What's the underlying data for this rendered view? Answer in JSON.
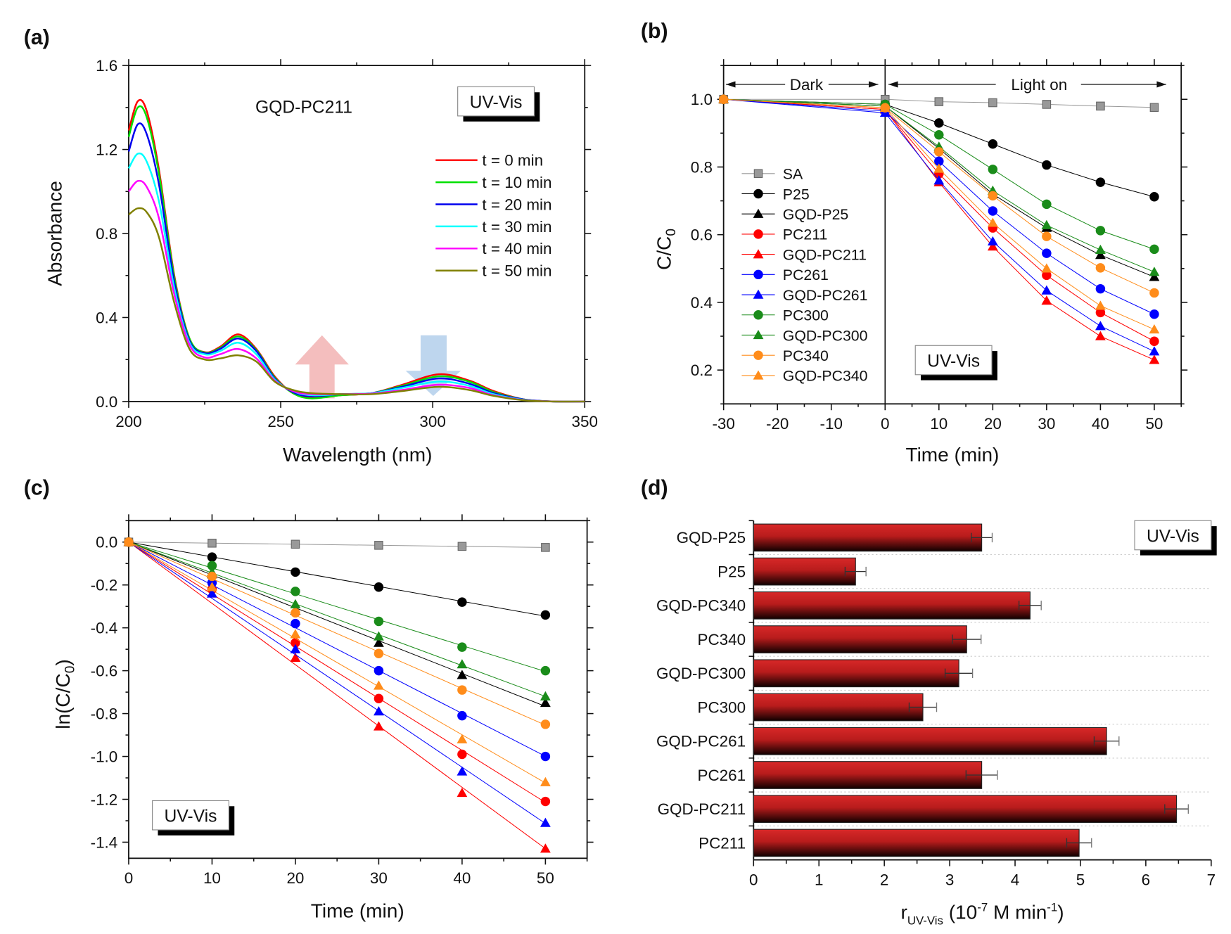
{
  "chart_data": [
    {
      "panel": "(a)",
      "type": "line",
      "title": "GQD-PC211",
      "annotation": "UV-Vis",
      "xlabel": "Wavelength (nm)",
      "ylabel": "Absorbance",
      "xlim": [
        200,
        350
      ],
      "ylim": [
        0,
        1.6
      ],
      "xticks": [
        200,
        250,
        300,
        350
      ],
      "yticks": [
        "0.0",
        "0.4",
        "0.8",
        "1.2",
        "1.6"
      ],
      "legend_position": "right",
      "x": [
        200,
        203,
        206,
        210,
        215,
        220,
        225,
        230,
        236,
        242,
        248,
        254,
        260,
        270,
        280,
        290,
        302,
        312,
        320,
        330,
        340,
        350
      ],
      "series": [
        {
          "name": "t = 0 min",
          "color": "#ff0000",
          "values": [
            1.29,
            1.43,
            1.38,
            1.1,
            0.6,
            0.3,
            0.235,
            0.26,
            0.32,
            0.25,
            0.12,
            0.04,
            0.02,
            0.03,
            0.04,
            0.08,
            0.13,
            0.1,
            0.05,
            0.01,
            0.0,
            0.0
          ]
        },
        {
          "name": "t = 10 min",
          "color": "#00e000",
          "values": [
            1.26,
            1.4,
            1.35,
            1.08,
            0.59,
            0.3,
            0.233,
            0.255,
            0.31,
            0.245,
            0.115,
            0.04,
            0.015,
            0.03,
            0.04,
            0.075,
            0.12,
            0.095,
            0.045,
            0.01,
            0.0,
            0.0
          ]
        },
        {
          "name": "t = 20 min",
          "color": "#0000ee",
          "values": [
            1.19,
            1.32,
            1.27,
            1.03,
            0.57,
            0.29,
            0.23,
            0.25,
            0.3,
            0.24,
            0.11,
            0.045,
            0.025,
            0.035,
            0.04,
            0.07,
            0.11,
            0.085,
            0.04,
            0.01,
            0.0,
            0.0
          ]
        },
        {
          "name": "t = 30 min",
          "color": "#00ffff",
          "values": [
            1.11,
            1.18,
            1.14,
            0.95,
            0.54,
            0.28,
            0.225,
            0.24,
            0.28,
            0.225,
            0.105,
            0.05,
            0.03,
            0.035,
            0.04,
            0.065,
            0.095,
            0.075,
            0.035,
            0.008,
            0.0,
            0.0
          ]
        },
        {
          "name": "t = 40 min",
          "color": "#ff00ff",
          "values": [
            1.0,
            1.05,
            1.02,
            0.87,
            0.51,
            0.27,
            0.21,
            0.225,
            0.25,
            0.205,
            0.1,
            0.05,
            0.035,
            0.035,
            0.038,
            0.055,
            0.08,
            0.065,
            0.03,
            0.007,
            0.0,
            0.0
          ]
        },
        {
          "name": "t = 50 min",
          "color": "#808000",
          "values": [
            0.89,
            0.92,
            0.9,
            0.78,
            0.47,
            0.25,
            0.2,
            0.205,
            0.22,
            0.19,
            0.095,
            0.055,
            0.04,
            0.035,
            0.035,
            0.05,
            0.07,
            0.055,
            0.027,
            0.006,
            0.0,
            0.0
          ]
        }
      ],
      "arrows": [
        {
          "direction": "up",
          "color": "#f0a8a8"
        },
        {
          "direction": "down",
          "color": "#a8c8e8"
        }
      ]
    },
    {
      "panel": "(b)",
      "type": "line",
      "annotation": "UV-Vis",
      "xlabel": "Time (min)",
      "ylabel": "C/C",
      "ylabel_sub": "0",
      "region_labels": {
        "dark": "Dark",
        "light": "Light on"
      },
      "xlim": [
        -30,
        55
      ],
      "ylim": [
        0.1,
        1.1
      ],
      "xticks": [
        -30,
        -20,
        -10,
        0,
        10,
        20,
        30,
        40,
        50
      ],
      "yticks": [
        "0.2",
        "0.4",
        "0.6",
        "0.8",
        "1.0"
      ],
      "legend_position": "left",
      "x": [
        -30,
        0,
        10,
        20,
        30,
        40,
        50
      ],
      "series": [
        {
          "name": "SA",
          "color": "#999999",
          "marker": "square",
          "values": [
            1.0,
            1.0,
            0.993,
            0.99,
            0.985,
            0.98,
            0.976
          ]
        },
        {
          "name": "P25",
          "color": "#000000",
          "marker": "circle",
          "values": [
            1.0,
            0.985,
            0.93,
            0.868,
            0.806,
            0.755,
            0.712
          ]
        },
        {
          "name": "GQD-P25",
          "color": "#000000",
          "marker": "triangle",
          "values": [
            1.0,
            0.98,
            0.855,
            0.72,
            0.62,
            0.54,
            0.475
          ]
        },
        {
          "name": "PC211",
          "color": "#ff0000",
          "marker": "circle",
          "values": [
            1.0,
            0.97,
            0.78,
            0.62,
            0.48,
            0.37,
            0.285
          ]
        },
        {
          "name": "GQD-PC211",
          "color": "#ff0000",
          "marker": "triangle",
          "values": [
            1.0,
            0.97,
            0.755,
            0.565,
            0.405,
            0.3,
            0.23
          ]
        },
        {
          "name": "PC261",
          "color": "#0000ff",
          "marker": "circle",
          "values": [
            1.0,
            0.965,
            0.817,
            0.67,
            0.545,
            0.44,
            0.365
          ]
        },
        {
          "name": "GQD-PC261",
          "color": "#0000ff",
          "marker": "triangle",
          "values": [
            1.0,
            0.96,
            0.76,
            0.58,
            0.435,
            0.33,
            0.255
          ]
        },
        {
          "name": "PC300",
          "color": "#1a8c1a",
          "marker": "circle",
          "values": [
            1.0,
            0.985,
            0.895,
            0.793,
            0.69,
            0.612,
            0.557
          ]
        },
        {
          "name": "GQD-PC300",
          "color": "#1a8c1a",
          "marker": "triangle",
          "values": [
            1.0,
            0.98,
            0.86,
            0.73,
            0.628,
            0.555,
            0.49
          ]
        },
        {
          "name": "PC340",
          "color": "#ff8c1a",
          "marker": "circle",
          "values": [
            1.0,
            0.975,
            0.845,
            0.715,
            0.595,
            0.502,
            0.428
          ]
        },
        {
          "name": "GQD-PC340",
          "color": "#ff8c1a",
          "marker": "triangle",
          "values": [
            1.0,
            0.975,
            0.795,
            0.635,
            0.5,
            0.39,
            0.32
          ]
        }
      ]
    },
    {
      "panel": "(c)",
      "type": "scatter",
      "annotation": "UV-Vis",
      "xlabel": "Time (min)",
      "ylabel": "ln(C/C",
      "ylabel_sub": "0",
      "ylabel_end": ")",
      "xlim": [
        0,
        55
      ],
      "ylim": [
        -1.475,
        0.1
      ],
      "xticks": [
        0,
        10,
        20,
        30,
        40,
        50
      ],
      "yticks": [
        "-1.4",
        "-1.2",
        "-1.0",
        "-0.8",
        "-0.6",
        "-0.4",
        "-0.2",
        "0.0"
      ],
      "fit_lines": "linear",
      "x": [
        0,
        10,
        20,
        30,
        40,
        50
      ],
      "series": [
        {
          "label": "SA",
          "color": "#999999",
          "marker": "square",
          "values": [
            0,
            -0.005,
            -0.01,
            -0.015,
            -0.02,
            -0.025
          ]
        },
        {
          "label": "P25",
          "color": "#000000",
          "marker": "circle",
          "values": [
            0,
            -0.07,
            -0.14,
            -0.21,
            -0.28,
            -0.34
          ]
        },
        {
          "label": "GQD-P25",
          "color": "#000000",
          "marker": "triangle",
          "values": [
            0,
            -0.15,
            -0.32,
            -0.47,
            -0.62,
            -0.75
          ]
        },
        {
          "label": "PC211",
          "color": "#ff0000",
          "marker": "circle",
          "values": [
            0,
            -0.22,
            -0.47,
            -0.73,
            -0.99,
            -1.21
          ]
        },
        {
          "label": "GQD-PC211",
          "color": "#ff0000",
          "marker": "triangle",
          "values": [
            0,
            -0.24,
            -0.54,
            -0.86,
            -1.17,
            -1.43
          ]
        },
        {
          "label": "PC261",
          "color": "#0000ff",
          "marker": "circle",
          "values": [
            0,
            -0.19,
            -0.38,
            -0.6,
            -0.81,
            -1.0
          ]
        },
        {
          "label": "GQD-PC261",
          "color": "#0000ff",
          "marker": "triangle",
          "values": [
            0,
            -0.24,
            -0.5,
            -0.79,
            -1.07,
            -1.31
          ]
        },
        {
          "label": "PC300",
          "color": "#1a8c1a",
          "marker": "circle",
          "values": [
            0,
            -0.11,
            -0.23,
            -0.37,
            -0.49,
            -0.6
          ]
        },
        {
          "label": "GQD-PC300",
          "color": "#1a8c1a",
          "marker": "triangle",
          "values": [
            0,
            -0.14,
            -0.29,
            -0.44,
            -0.57,
            -0.72
          ]
        },
        {
          "label": "PC340",
          "color": "#ff8c1a",
          "marker": "circle",
          "values": [
            0,
            -0.16,
            -0.33,
            -0.52,
            -0.69,
            -0.85
          ]
        },
        {
          "label": "GQD-PC340",
          "color": "#ff8c1a",
          "marker": "triangle",
          "values": [
            0,
            -0.21,
            -0.43,
            -0.67,
            -0.92,
            -1.12
          ]
        }
      ]
    },
    {
      "panel": "(d)",
      "type": "bar",
      "orientation": "horizontal",
      "annotation": "UV-Vis",
      "xlabel_parts": {
        "r": "r",
        "sub": "UV-Vis",
        "a": " (10",
        "sup1": "-7",
        "b": " M min",
        "sup2": "-1",
        "c": ")"
      },
      "xlim": [
        0,
        7
      ],
      "xticks": [
        0,
        1,
        2,
        3,
        4,
        5,
        6,
        7
      ],
      "bar_color": "#d42020",
      "categories": [
        "GQD-P25",
        "P25",
        "GQD-PC340",
        "PC340",
        "GQD-PC300",
        "PC300",
        "GQD-PC261",
        "PC261",
        "GQD-PC211",
        "PC211"
      ],
      "values": [
        3.49,
        1.56,
        4.23,
        3.26,
        3.14,
        2.59,
        5.4,
        3.49,
        6.47,
        4.98
      ],
      "errors": [
        0.16,
        0.16,
        0.17,
        0.22,
        0.21,
        0.21,
        0.19,
        0.24,
        0.18,
        0.19
      ]
    }
  ]
}
